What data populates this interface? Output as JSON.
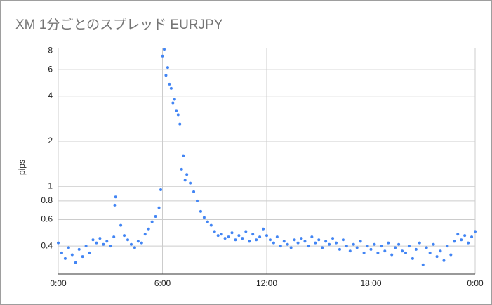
{
  "chart_data": {
    "type": "scatter",
    "title": "XM 1分ごとのスプレッド EURJPY",
    "y_label": "pips",
    "color": "#4285f4",
    "log_y": true,
    "grid": true,
    "xlim": [
      0,
      24
    ],
    "xticks": [
      {
        "value": 0,
        "label": "0:00"
      },
      {
        "value": 6,
        "label": "6:00"
      },
      {
        "value": 12,
        "label": "12:00"
      },
      {
        "value": 18,
        "label": "18:00"
      },
      {
        "value": 24,
        "label": "0:00"
      }
    ],
    "ylim": [
      0.26,
      8.4
    ],
    "yticks": [
      0.4,
      0.6,
      0.8,
      1,
      2,
      4,
      6,
      8
    ],
    "x": [
      0,
      0.2,
      0.4,
      0.6,
      0.8,
      1,
      1.2,
      1.4,
      1.6,
      1.8,
      2,
      2.2,
      2.4,
      2.6,
      2.8,
      3,
      3.2,
      3.3,
      3.6,
      3.8,
      4,
      4.2,
      4.4,
      4.6,
      4.8,
      5,
      5.2,
      5.4,
      5.6,
      5.8,
      6,
      6.2,
      6.4,
      6.6,
      6.8,
      7,
      7.2,
      7.4,
      7.6,
      7.8,
      8,
      8.2,
      8.4,
      8.6,
      8.8,
      9,
      9.2,
      9.4,
      9.6,
      9.8,
      10,
      10.2,
      10.4,
      10.6,
      10.8,
      11,
      11.2,
      11.4,
      11.6,
      11.8,
      12,
      12.2,
      12.4,
      12.6,
      12.8,
      13,
      13.2,
      13.4,
      13.6,
      13.8,
      14,
      14.2,
      14.4,
      14.6,
      14.8,
      15,
      15.2,
      15.4,
      15.6,
      15.8,
      16,
      16.2,
      16.4,
      16.6,
      16.8,
      17,
      17.2,
      17.4,
      17.6,
      17.8,
      18,
      18.2,
      18.4,
      18.6,
      18.8,
      19,
      19.2,
      19.4,
      19.6,
      19.8,
      20,
      20.2,
      20.4,
      20.6,
      20.8,
      21,
      21.2,
      21.4,
      21.6,
      21.8,
      22,
      22.2,
      22.4,
      22.6,
      22.8,
      23,
      23.2,
      23.4,
      23.6,
      23.8,
      6.1,
      6.3,
      6.5,
      6.7,
      6.9,
      7.1,
      3.25,
      5.9,
      7.3,
      24
    ],
    "values": [
      0.42,
      0.36,
      0.33,
      0.39,
      0.35,
      0.31,
      0.38,
      0.34,
      0.4,
      0.36,
      0.44,
      0.42,
      0.45,
      0.41,
      0.43,
      0.4,
      0.46,
      0.85,
      0.55,
      0.47,
      0.44,
      0.41,
      0.39,
      0.43,
      0.42,
      0.48,
      0.52,
      0.58,
      0.63,
      0.72,
      7.4,
      5.5,
      4.8,
      3.6,
      3.2,
      2.6,
      1.6,
      1.2,
      1.05,
      0.92,
      0.8,
      0.68,
      0.62,
      0.58,
      0.55,
      0.5,
      0.47,
      0.48,
      0.45,
      0.46,
      0.49,
      0.44,
      0.47,
      0.45,
      0.5,
      0.43,
      0.48,
      0.44,
      0.46,
      0.52,
      0.47,
      0.44,
      0.42,
      0.46,
      0.4,
      0.43,
      0.41,
      0.39,
      0.44,
      0.42,
      0.45,
      0.43,
      0.4,
      0.46,
      0.42,
      0.44,
      0.39,
      0.43,
      0.41,
      0.45,
      0.42,
      0.38,
      0.44,
      0.4,
      0.37,
      0.41,
      0.39,
      0.43,
      0.36,
      0.4,
      0.38,
      0.41,
      0.36,
      0.4,
      0.37,
      0.42,
      0.35,
      0.39,
      0.41,
      0.37,
      0.36,
      0.4,
      0.33,
      0.38,
      0.42,
      0.3,
      0.39,
      0.36,
      0.41,
      0.34,
      0.37,
      0.32,
      0.4,
      0.35,
      0.43,
      0.48,
      0.44,
      0.47,
      0.42,
      0.46,
      8.2,
      6.2,
      4.5,
      3.8,
      3.0,
      1.3,
      0.75,
      0.95,
      1.1,
      0.5
    ]
  }
}
